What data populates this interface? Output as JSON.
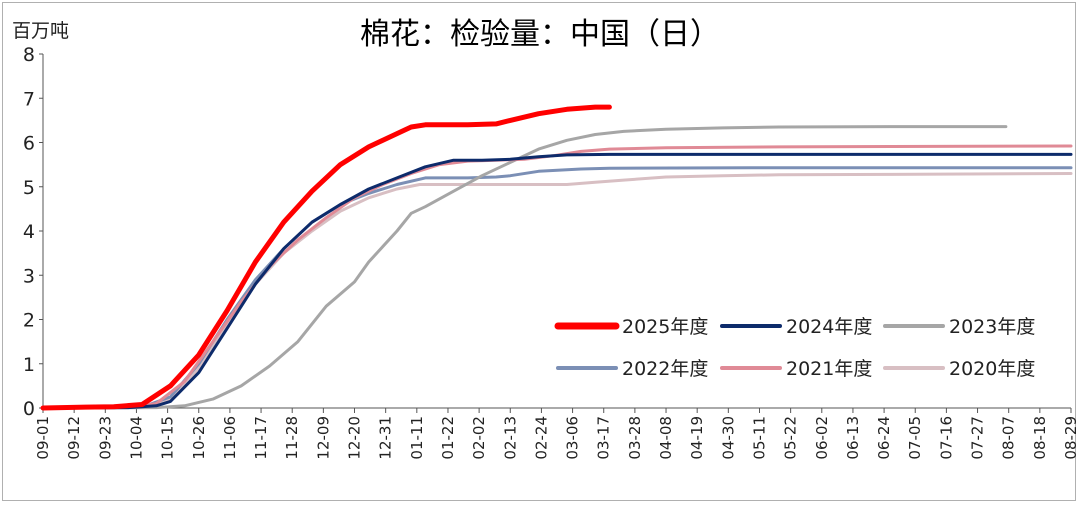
{
  "chart_data": {
    "type": "line",
    "title": "棉花：检验量：中国（日）",
    "ylabel": "百万吨",
    "xlabel": "",
    "ylim": [
      0,
      8
    ],
    "yticks": [
      "0",
      "1",
      "2",
      "3",
      "4",
      "5",
      "6",
      "7",
      "8"
    ],
    "xticks": [
      "09-01",
      "09-12",
      "09-23",
      "10-04",
      "10-15",
      "10-26",
      "11-06",
      "11-17",
      "11-28",
      "12-09",
      "12-20",
      "12-31",
      "01-11",
      "01-22",
      "02-02",
      "02-13",
      "02-24",
      "03-06",
      "03-17",
      "03-28",
      "04-08",
      "04-19",
      "04-30",
      "05-11",
      "05-22",
      "06-02",
      "06-13",
      "06-24",
      "07-05",
      "07-16",
      "07-27",
      "08-07",
      "08-18",
      "08-29"
    ],
    "x_unit": "day index from 09-01",
    "series": [
      {
        "name": "2025年度",
        "color": "#ff0000",
        "points": [
          [
            0,
            0
          ],
          [
            15,
            0.02
          ],
          [
            25,
            0.03
          ],
          [
            35,
            0.08
          ],
          [
            45,
            0.5
          ],
          [
            55,
            1.2
          ],
          [
            65,
            2.2
          ],
          [
            75,
            3.3
          ],
          [
            85,
            4.2
          ],
          [
            95,
            4.9
          ],
          [
            105,
            5.5
          ],
          [
            115,
            5.9
          ],
          [
            125,
            6.2
          ],
          [
            130,
            6.35
          ],
          [
            135,
            6.4
          ],
          [
            150,
            6.4
          ],
          [
            160,
            6.42
          ],
          [
            165,
            6.5
          ],
          [
            175,
            6.65
          ],
          [
            185,
            6.75
          ],
          [
            195,
            6.8
          ],
          [
            200,
            6.8
          ]
        ]
      },
      {
        "name": "2024年度",
        "color": "#0d2b6b",
        "points": [
          [
            0,
            0
          ],
          [
            30,
            0.01
          ],
          [
            40,
            0.05
          ],
          [
            45,
            0.15
          ],
          [
            55,
            0.8
          ],
          [
            65,
            1.8
          ],
          [
            75,
            2.8
          ],
          [
            85,
            3.6
          ],
          [
            95,
            4.2
          ],
          [
            105,
            4.6
          ],
          [
            115,
            4.95
          ],
          [
            125,
            5.2
          ],
          [
            135,
            5.45
          ],
          [
            145,
            5.6
          ],
          [
            155,
            5.6
          ],
          [
            165,
            5.62
          ],
          [
            175,
            5.68
          ],
          [
            185,
            5.72
          ],
          [
            200,
            5.73
          ],
          [
            250,
            5.73
          ],
          [
            300,
            5.73
          ],
          [
            330,
            5.73
          ],
          [
            363,
            5.73
          ]
        ]
      },
      {
        "name": "2023年度",
        "color": "#a6a6a6",
        "points": [
          [
            0,
            0
          ],
          [
            40,
            0.01
          ],
          [
            50,
            0.05
          ],
          [
            60,
            0.2
          ],
          [
            70,
            0.5
          ],
          [
            80,
            0.95
          ],
          [
            90,
            1.5
          ],
          [
            95,
            1.9
          ],
          [
            100,
            2.3
          ],
          [
            110,
            2.85
          ],
          [
            115,
            3.3
          ],
          [
            125,
            4.0
          ],
          [
            130,
            4.4
          ],
          [
            135,
            4.55
          ],
          [
            145,
            4.9
          ],
          [
            155,
            5.25
          ],
          [
            165,
            5.55
          ],
          [
            175,
            5.85
          ],
          [
            185,
            6.05
          ],
          [
            195,
            6.18
          ],
          [
            205,
            6.25
          ],
          [
            220,
            6.3
          ],
          [
            240,
            6.33
          ],
          [
            260,
            6.35
          ],
          [
            300,
            6.36
          ],
          [
            340,
            6.36
          ]
        ]
      },
      {
        "name": "2022年度",
        "color": "#7b8fb5",
        "points": [
          [
            0,
            0
          ],
          [
            35,
            0.02
          ],
          [
            45,
            0.25
          ],
          [
            55,
            1.0
          ],
          [
            65,
            2.0
          ],
          [
            75,
            2.9
          ],
          [
            85,
            3.6
          ],
          [
            95,
            4.2
          ],
          [
            105,
            4.6
          ],
          [
            115,
            4.85
          ],
          [
            125,
            5.05
          ],
          [
            135,
            5.2
          ],
          [
            150,
            5.2
          ],
          [
            160,
            5.22
          ],
          [
            165,
            5.25
          ],
          [
            175,
            5.35
          ],
          [
            190,
            5.4
          ],
          [
            200,
            5.42
          ],
          [
            250,
            5.43
          ],
          [
            300,
            5.43
          ],
          [
            363,
            5.43
          ]
        ]
      },
      {
        "name": "2021年度",
        "color": "#e08a96",
        "points": [
          [
            0,
            0
          ],
          [
            30,
            0.02
          ],
          [
            40,
            0.1
          ],
          [
            50,
            0.6
          ],
          [
            60,
            1.5
          ],
          [
            70,
            2.4
          ],
          [
            80,
            3.2
          ],
          [
            90,
            3.8
          ],
          [
            100,
            4.3
          ],
          [
            110,
            4.75
          ],
          [
            120,
            5.05
          ],
          [
            130,
            5.3
          ],
          [
            140,
            5.5
          ],
          [
            150,
            5.58
          ],
          [
            160,
            5.6
          ],
          [
            170,
            5.62
          ],
          [
            180,
            5.7
          ],
          [
            190,
            5.8
          ],
          [
            200,
            5.85
          ],
          [
            220,
            5.88
          ],
          [
            260,
            5.9
          ],
          [
            300,
            5.91
          ],
          [
            363,
            5.92
          ]
        ]
      },
      {
        "name": "2020年度",
        "color": "#d8bfc3",
        "points": [
          [
            0,
            0
          ],
          [
            35,
            0.02
          ],
          [
            45,
            0.2
          ],
          [
            55,
            0.9
          ],
          [
            65,
            1.9
          ],
          [
            75,
            2.8
          ],
          [
            85,
            3.5
          ],
          [
            95,
            4.0
          ],
          [
            105,
            4.45
          ],
          [
            115,
            4.75
          ],
          [
            125,
            4.95
          ],
          [
            133,
            5.05
          ],
          [
            145,
            5.05
          ],
          [
            160,
            5.05
          ],
          [
            185,
            5.05
          ],
          [
            195,
            5.1
          ],
          [
            205,
            5.15
          ],
          [
            220,
            5.22
          ],
          [
            240,
            5.25
          ],
          [
            260,
            5.27
          ],
          [
            300,
            5.28
          ],
          [
            363,
            5.3
          ]
        ]
      }
    ],
    "legend_position": "bottom-right"
  }
}
